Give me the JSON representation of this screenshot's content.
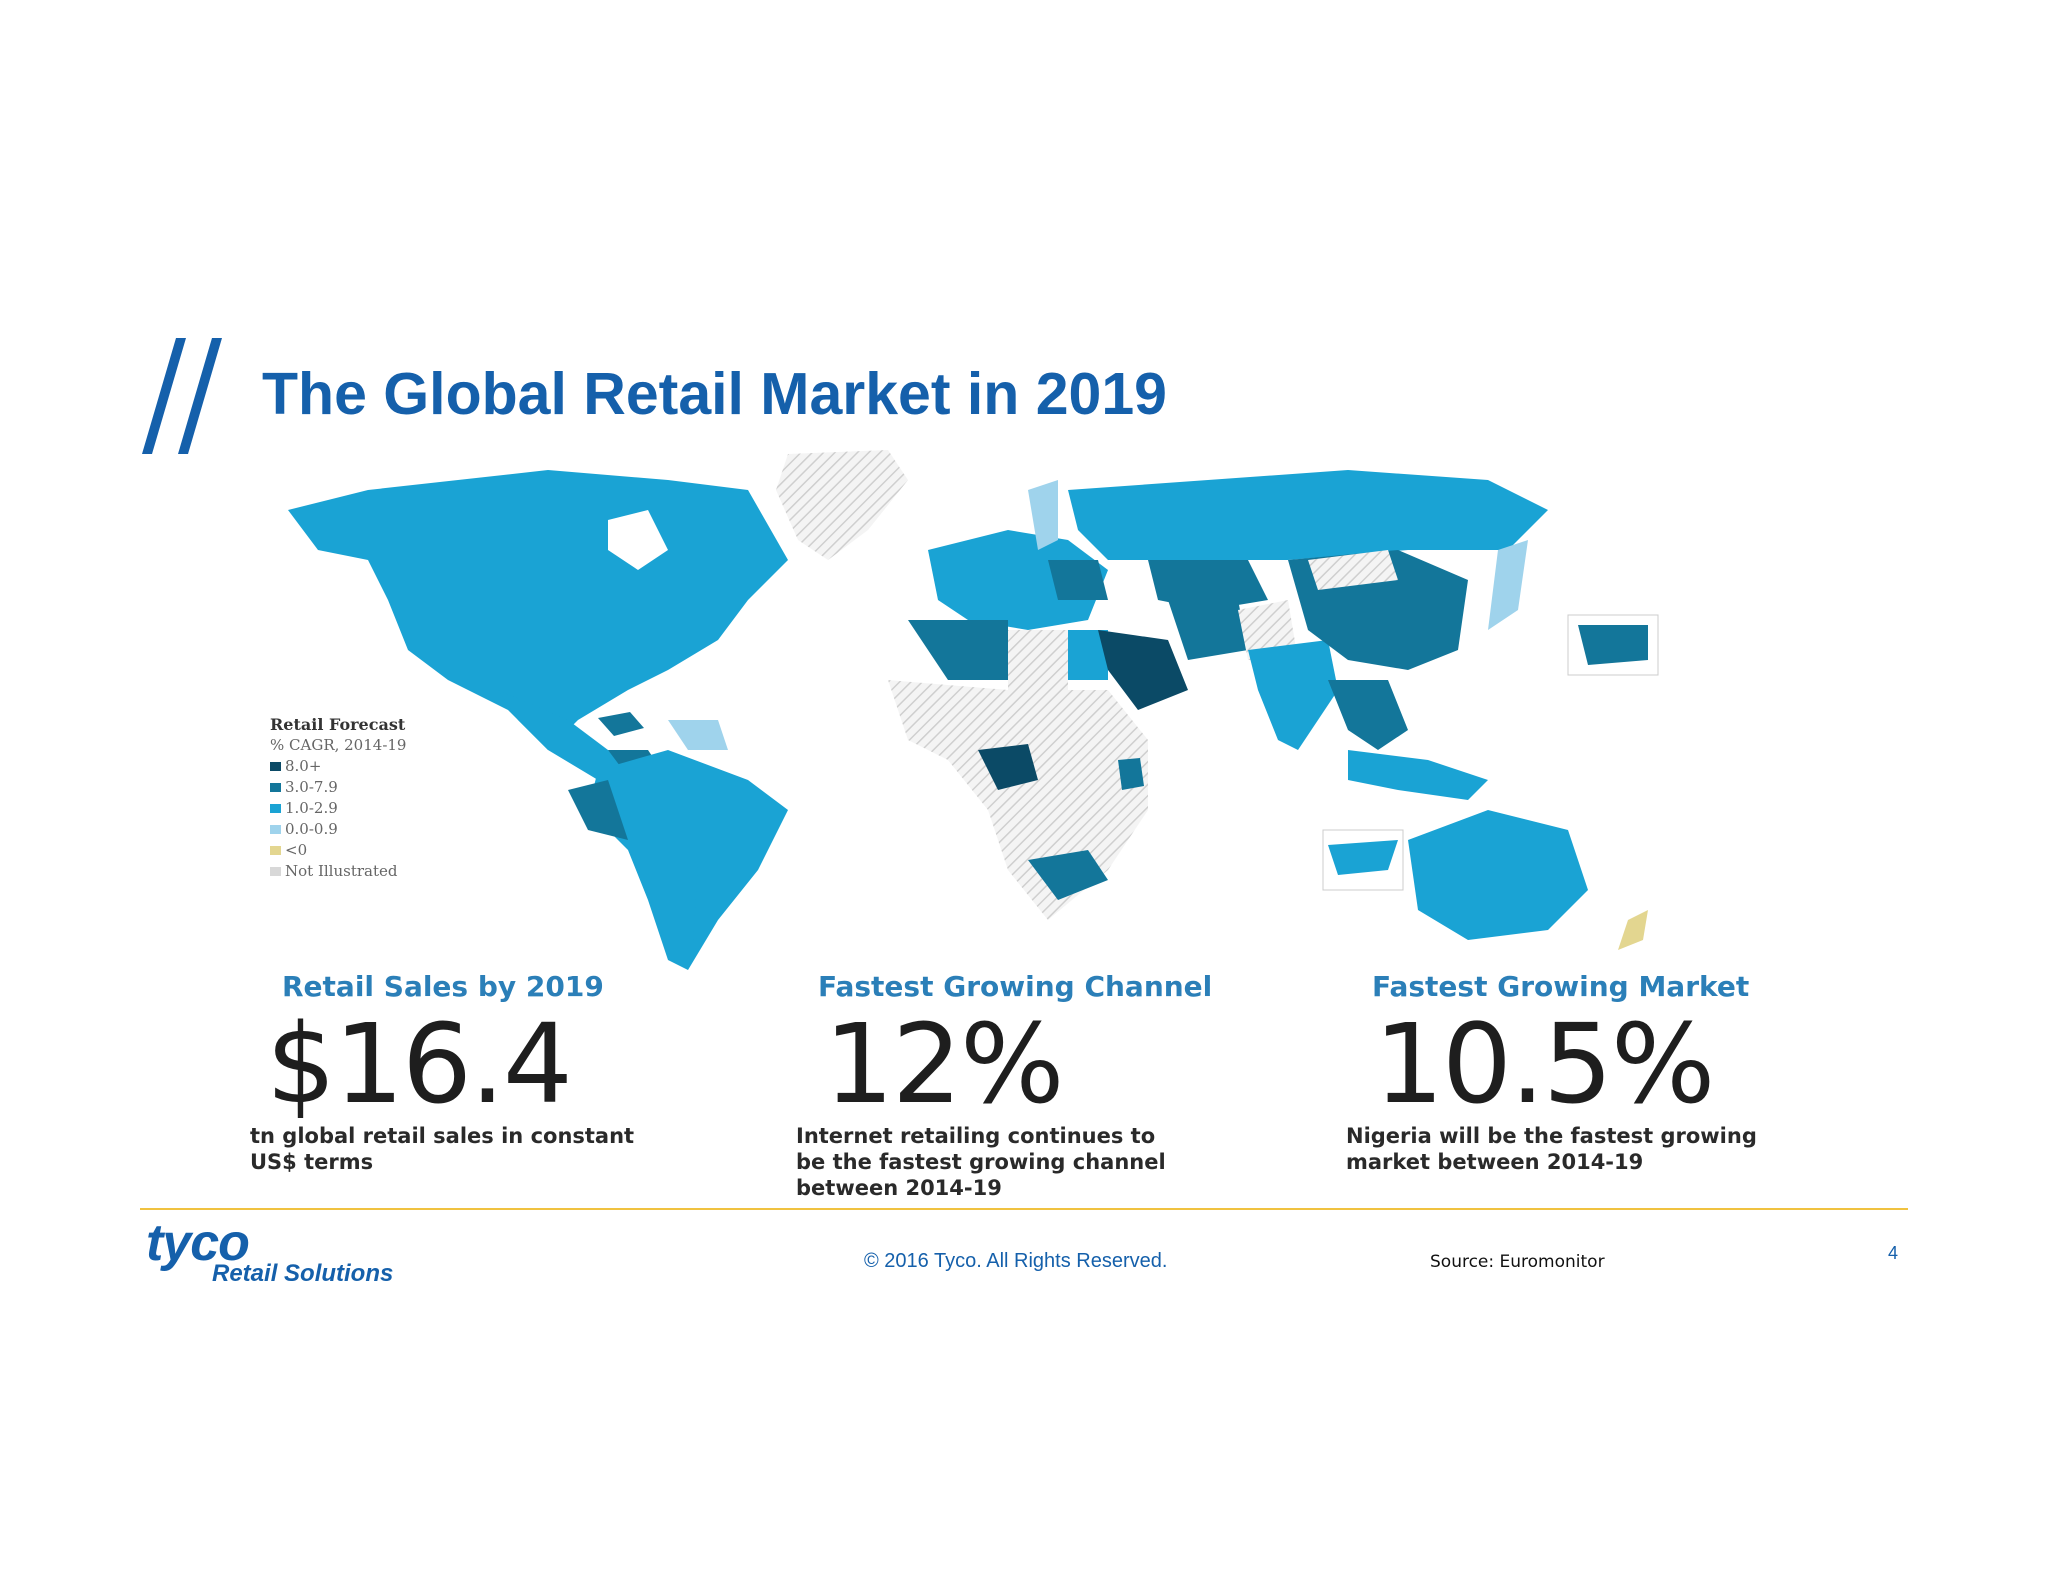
{
  "slide": {
    "title": "The Global Retail Market in 2019"
  },
  "legend": {
    "title": "Retail Forecast",
    "subtitle": "% CAGR, 2014-19",
    "items": [
      {
        "label": "8.0+",
        "color": "#0b4a66"
      },
      {
        "label": "3.0-7.9",
        "color": "#13769a"
      },
      {
        "label": "1.0-2.9",
        "color": "#1aa3d4"
      },
      {
        "label": "0.0-0.9",
        "color": "#9fd3ec"
      },
      {
        "label": "<0",
        "color": "#e3d690"
      },
      {
        "label": "Not Illustrated",
        "color": "#d8d8d8"
      }
    ]
  },
  "stats": [
    {
      "heading": "Retail Sales by 2019",
      "value": "$16.4",
      "description": [
        "tn global retail sales in constant",
        "US$ terms"
      ]
    },
    {
      "heading": "Fastest Growing Channel",
      "value": "12%",
      "description": [
        "Internet retailing continues to",
        "be the fastest growing channel",
        "between 2014-19"
      ]
    },
    {
      "heading": "Fastest Growing Market",
      "value": "10.5%",
      "description": [
        "Nigeria will be the fastest growing",
        "market between 2014-19"
      ]
    }
  ],
  "footer": {
    "brand": "tyco",
    "brand_sub": "Retail Solutions",
    "copyright": "© 2016 Tyco. All Rights Reserved.",
    "source": "Source: Euromonitor",
    "page_number": "4"
  },
  "colors": {
    "brand_blue": "#1560ab",
    "accent_gold": "#f0c240",
    "map_dark": "#0b4a66",
    "map_mid": "#13769a",
    "map_light": "#1aa3d4",
    "map_pale": "#9fd3ec"
  }
}
